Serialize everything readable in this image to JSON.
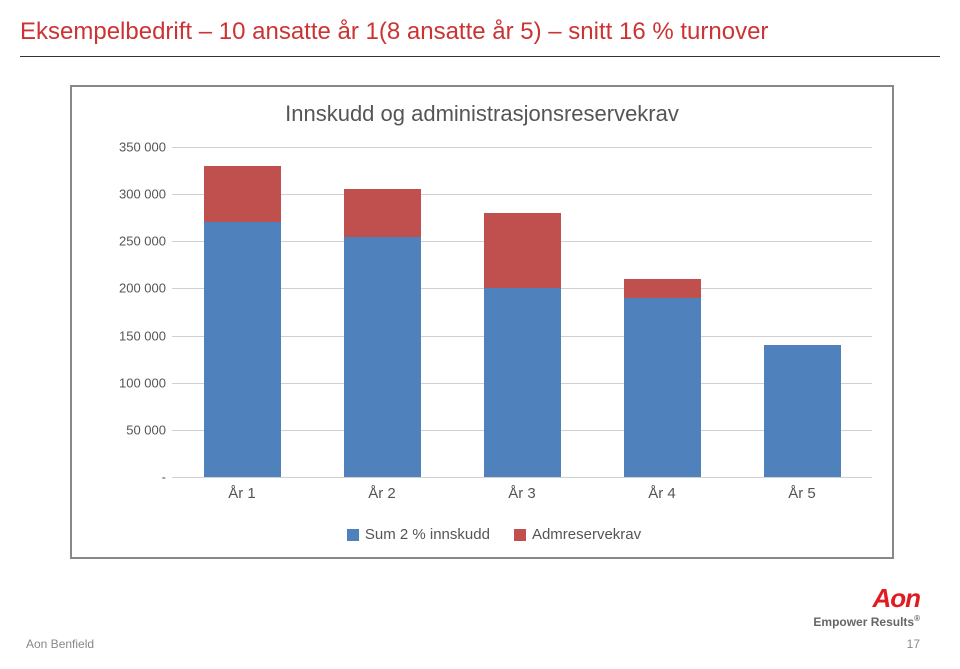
{
  "page": {
    "title": "Eksempelbedrift – 10 ansatte år 1(8 ansatte år 5) – snitt 16 % turnover",
    "footer_left": "Aon Benfield",
    "page_number": "17",
    "logo_main": "Aon",
    "logo_sub": "Empower Results"
  },
  "chart": {
    "type": "stacked-bar",
    "title": "Innskudd og administrasjonsreservekrav",
    "categories": [
      "År 1",
      "År 2",
      "År 3",
      "År 4",
      "År 5"
    ],
    "series": [
      {
        "name": "Sum 2 % innskudd",
        "color": "#4f81bd",
        "values": [
          270000,
          255000,
          200000,
          190000,
          140000
        ]
      },
      {
        "name": "Admreservekrav",
        "color": "#c0504d",
        "values": [
          60000,
          50000,
          80000,
          20000,
          0
        ]
      }
    ],
    "ylim": [
      0,
      350000
    ],
    "ytick_step": 50000,
    "ytick_labels": [
      "-",
      "50 000",
      "100 000",
      "150 000",
      "200 000",
      "250 000",
      "300 000",
      "350 000"
    ],
    "bar_width": 0.55,
    "background_color": "#ffffff",
    "grid_color": "#d0d0d0",
    "label_fontsize": 15,
    "title_fontsize": 22
  }
}
